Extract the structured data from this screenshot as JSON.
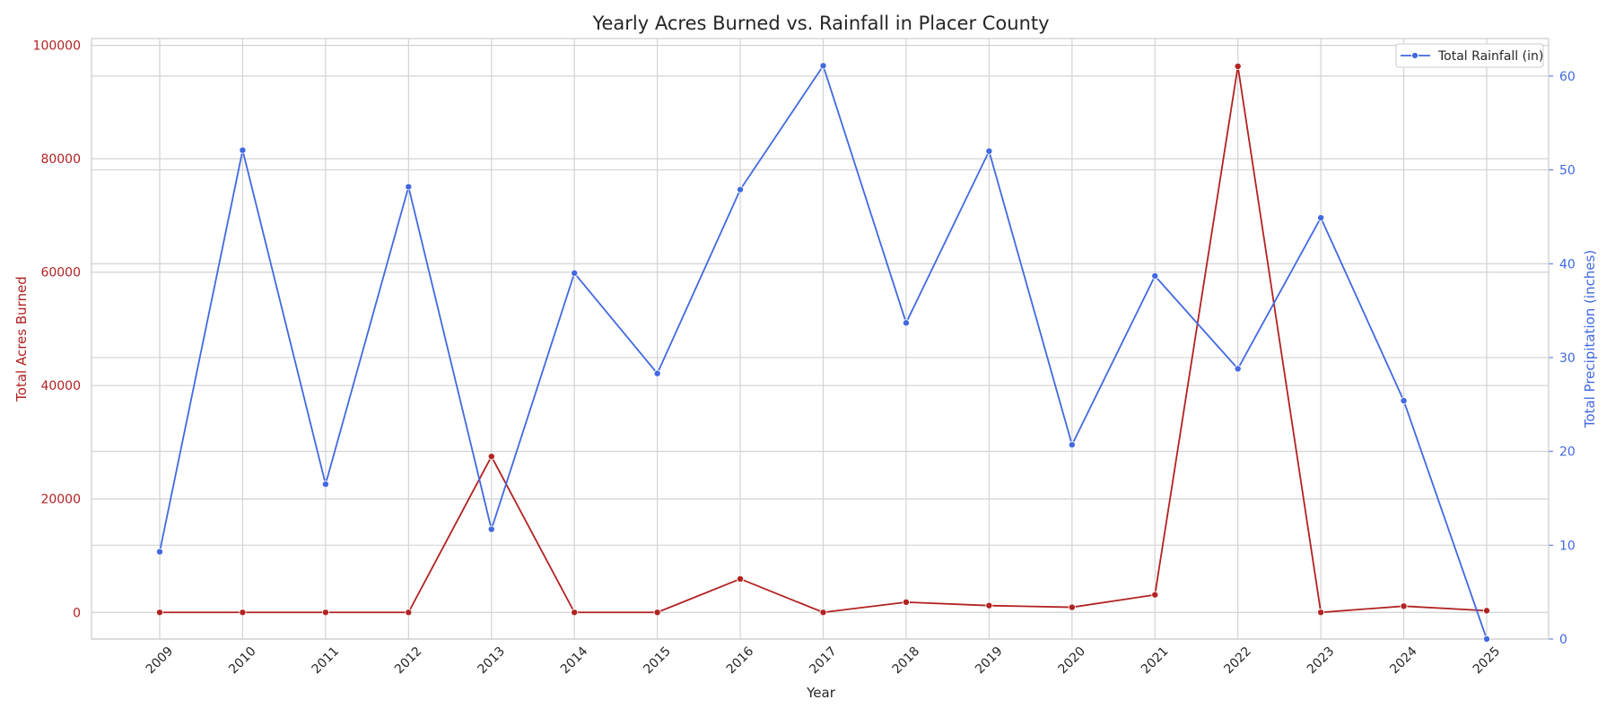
{
  "chart_data": {
    "type": "line",
    "title": "Yearly Acres Burned vs. Rainfall in Placer County",
    "xlabel": "Year",
    "x": [
      "2009",
      "2010",
      "2011",
      "2012",
      "2013",
      "2014",
      "2015",
      "2016",
      "2017",
      "2018",
      "2019",
      "2020",
      "2021",
      "2022",
      "2023",
      "2024",
      "2025"
    ],
    "y_left": {
      "label": "Total Acres Burned",
      "color": "#b22222",
      "ylim": [
        -4700,
        101200
      ],
      "ticks": [
        "0",
        "20000",
        "40000",
        "60000",
        "80000",
        "100000"
      ],
      "tick_values": [
        0,
        20000,
        40000,
        60000,
        80000,
        100000
      ]
    },
    "y_right": {
      "label": "Total Precipitation (inches)",
      "color": "#4169e1",
      "ylim": [
        0,
        64
      ],
      "ticks": [
        "0",
        "10",
        "20",
        "30",
        "40",
        "50",
        "60"
      ],
      "tick_values": [
        0,
        10,
        20,
        30,
        40,
        50,
        60
      ]
    },
    "series": [
      {
        "axis": "left",
        "color": "#b22222",
        "values": [
          0,
          0,
          0,
          0,
          27500,
          0,
          0,
          5900,
          0,
          1800,
          1200,
          900,
          3100,
          96300,
          0,
          1100,
          300
        ]
      },
      {
        "name": "Total Rainfall (in)",
        "axis": "right",
        "color": "#4169e1",
        "values": [
          9.3,
          52.1,
          16.5,
          48.2,
          11.7,
          39.0,
          28.3,
          47.9,
          61.1,
          33.7,
          52.0,
          20.7,
          38.7,
          28.8,
          44.9,
          25.4,
          0.0
        ]
      }
    ],
    "legend": {
      "position": "top-right",
      "entries": [
        "Total Rainfall (in)"
      ]
    },
    "grid": true
  }
}
